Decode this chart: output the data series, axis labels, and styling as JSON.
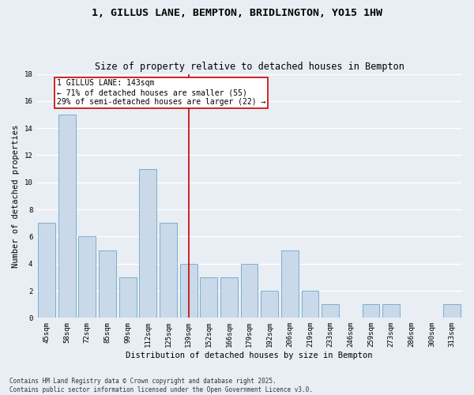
{
  "title": "1, GILLUS LANE, BEMPTON, BRIDLINGTON, YO15 1HW",
  "subtitle": "Size of property relative to detached houses in Bempton",
  "xlabel": "Distribution of detached houses by size in Bempton",
  "ylabel": "Number of detached properties",
  "categories": [
    "45sqm",
    "58sqm",
    "72sqm",
    "85sqm",
    "99sqm",
    "112sqm",
    "125sqm",
    "139sqm",
    "152sqm",
    "166sqm",
    "179sqm",
    "192sqm",
    "206sqm",
    "219sqm",
    "233sqm",
    "246sqm",
    "259sqm",
    "273sqm",
    "286sqm",
    "300sqm",
    "313sqm"
  ],
  "values": [
    7,
    15,
    6,
    5,
    3,
    11,
    7,
    4,
    3,
    3,
    4,
    2,
    5,
    2,
    1,
    0,
    1,
    1,
    0,
    0,
    1
  ],
  "bar_color": "#c9d9ea",
  "bar_edgecolor": "#6ea6c8",
  "vline_x": 7,
  "vline_color": "#cc0000",
  "annotation_title": "1 GILLUS LANE: 143sqm",
  "annotation_line1": "← 71% of detached houses are smaller (55)",
  "annotation_line2": "29% of semi-detached houses are larger (22) →",
  "annotation_box_color": "#cc0000",
  "ylim": [
    0,
    18
  ],
  "yticks": [
    0,
    2,
    4,
    6,
    8,
    10,
    12,
    14,
    16,
    18
  ],
  "background_color": "#e8eef4",
  "grid_color": "#ffffff",
  "footer": "Contains HM Land Registry data © Crown copyright and database right 2025.\nContains public sector information licensed under the Open Government Licence v3.0.",
  "title_fontsize": 9.5,
  "subtitle_fontsize": 8.5,
  "xlabel_fontsize": 7.5,
  "ylabel_fontsize": 7.5,
  "tick_fontsize": 6.5,
  "annotation_fontsize": 7.0,
  "footer_fontsize": 5.5
}
